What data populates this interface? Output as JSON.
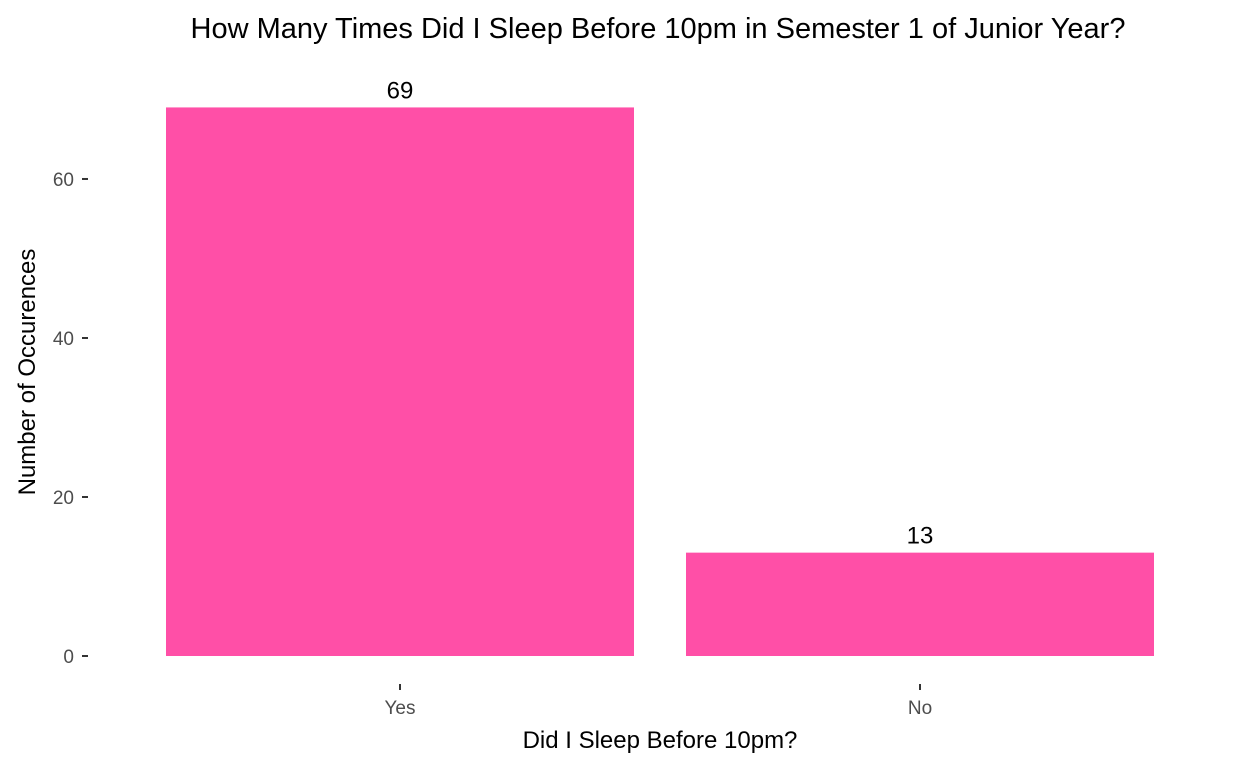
{
  "chart_data": {
    "type": "bar",
    "title": "How Many Times Did I Sleep Before 10pm in Semester 1 of Junior Year?",
    "xlabel": "Did I Sleep Before 10pm?",
    "ylabel": "Number of Occurences",
    "categories": [
      "Yes",
      "No"
    ],
    "values": [
      69,
      13
    ],
    "data_labels": [
      "69",
      "13"
    ],
    "ylim": [
      0,
      72.45
    ],
    "yticks": [
      0,
      20,
      40,
      60
    ],
    "grid": false,
    "legend": "none",
    "bar_color": "#FF4FA7"
  }
}
